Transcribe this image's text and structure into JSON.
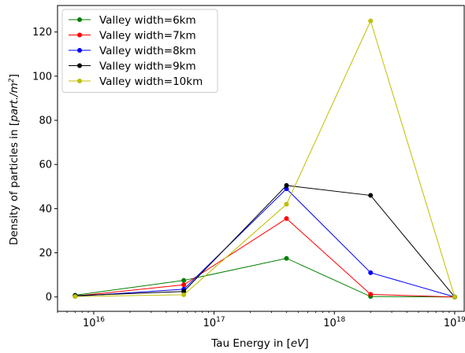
{
  "chart_data": {
    "type": "line",
    "xlabel_prefix": "Tau Energy in [",
    "xlabel_unit": "eV",
    "xlabel_suffix": "]",
    "ylabel_prefix": "Density of particles in [",
    "ylabel_unit": "part./m",
    "ylabel_exp": "2",
    "ylabel_suffix": "]",
    "xscale": "log",
    "xlim": [
      5000000000000000.0,
      1.2e+19
    ],
    "ylim": [
      -6.5,
      132
    ],
    "x_ticks": [
      {
        "value": 1e+16,
        "base": "10",
        "exp": "16"
      },
      {
        "value": 1e+17,
        "base": "10",
        "exp": "17"
      },
      {
        "value": 1e+18,
        "base": "10",
        "exp": "18"
      },
      {
        "value": 1e+19,
        "base": "10",
        "exp": "19"
      }
    ],
    "y_ticks": [
      0,
      20,
      40,
      60,
      80,
      100,
      120
    ],
    "grid": false,
    "legend_position": "top-left",
    "x": [
      7000000000000000.0,
      5.6e+16,
      4e+17,
      2e+18,
      1e+19
    ],
    "series": [
      {
        "name": "Valley width=6km",
        "color": "#008000",
        "values": [
          0.8,
          7.5,
          17.5,
          0.2,
          0.0
        ]
      },
      {
        "name": "Valley width=7km",
        "color": "#ff0000",
        "values": [
          0.4,
          5.5,
          35.5,
          1.2,
          0.0
        ]
      },
      {
        "name": "Valley width=8km",
        "color": "#0000ff",
        "values": [
          0.3,
          3.5,
          49.0,
          11.0,
          0.0
        ]
      },
      {
        "name": "Valley width=9km",
        "color": "#000000",
        "values": [
          0.6,
          2.5,
          50.5,
          46.0,
          0.0
        ]
      },
      {
        "name": "Valley width=10km",
        "color": "#bfbf00",
        "values": [
          0.2,
          1.0,
          42.0,
          125.0,
          0.0
        ]
      }
    ]
  }
}
